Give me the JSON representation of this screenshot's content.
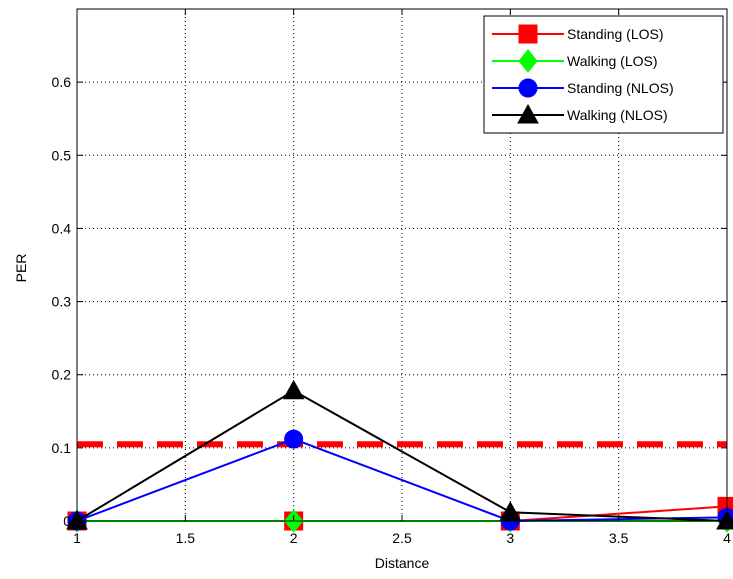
{
  "chart_data": {
    "type": "line",
    "title": "",
    "xlabel": "Distance",
    "ylabel": "PER",
    "xlim": [
      1,
      4
    ],
    "ylim": [
      0,
      0.7
    ],
    "xticks": [
      1,
      1.5,
      2,
      2.5,
      3,
      3.5,
      4
    ],
    "xtick_labels": [
      "1",
      "1.5",
      "2",
      "2.5",
      "3",
      "3.5",
      "4"
    ],
    "yticks": [
      0,
      0.1,
      0.2,
      0.3,
      0.4,
      0.5,
      0.6
    ],
    "ytick_labels": [
      "0",
      "0.1",
      "0.2",
      "0.3",
      "0.4",
      "0.5",
      "0.6"
    ],
    "grid": true,
    "legend_position": "top-right",
    "x": [
      1,
      2,
      3,
      4
    ],
    "series": [
      {
        "name": "Standing (LOS)",
        "values": [
          0,
          0,
          0,
          0.02
        ],
        "color": "#ff0000",
        "marker": "square"
      },
      {
        "name": "Walking (LOS)",
        "values": [
          0,
          0,
          0,
          0
        ],
        "color": "#00ff00",
        "marker": "diamond"
      },
      {
        "name": "Standing (NLOS)",
        "values": [
          0,
          0.112,
          0,
          0.005
        ],
        "color": "#0000ff",
        "marker": "circle"
      },
      {
        "name": "Walking (NLOS)",
        "values": [
          0,
          0.178,
          0.012,
          0
        ],
        "color": "#000000",
        "marker": "triangle"
      }
    ],
    "reference_line": {
      "y": 0.105,
      "color": "#ff0000",
      "style": "dashed"
    }
  }
}
